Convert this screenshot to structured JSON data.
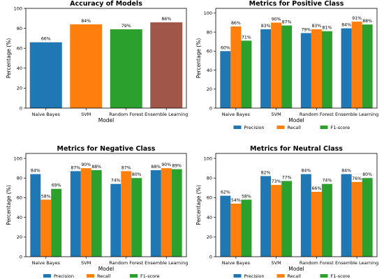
{
  "charts": [
    {
      "type": "bar",
      "title": "Accuracy of Models",
      "xlabel": "Model",
      "ylabel": "Percentage (%)",
      "ylim": [
        0,
        100
      ],
      "yticks": [
        0,
        20,
        40,
        60,
        80,
        100
      ],
      "categories": [
        "Naive Bayes",
        "SVM",
        "Random Forest",
        "Ensemble Learning"
      ],
      "series": [
        {
          "values": [
            66,
            84,
            79,
            86
          ],
          "labels": [
            "66%",
            "84%",
            "79%",
            "86%"
          ],
          "colors": [
            "#1f77b4",
            "#ff7f0e",
            "#2ca02c",
            "#a0574a"
          ]
        }
      ],
      "legend": false
    },
    {
      "type": "bar",
      "title": "Metrics for Positive Class",
      "xlabel": "Model",
      "ylabel": "Percentage (%)",
      "ylim": [
        0,
        105
      ],
      "yticks": [
        0,
        20,
        40,
        60,
        80,
        100
      ],
      "categories": [
        "Naive Bayes",
        "SVM",
        "Random Forest",
        "Ensemble Learning"
      ],
      "series": [
        {
          "name": "Precision",
          "color": "#1f77b4",
          "values": [
            60,
            83,
            79,
            84
          ],
          "labels": [
            "60%",
            "83%",
            "79%",
            "84%"
          ]
        },
        {
          "name": "Recall",
          "color": "#ff7f0e",
          "values": [
            86,
            90,
            83,
            91
          ],
          "labels": [
            "86%",
            "90%",
            "83%",
            "91%"
          ]
        },
        {
          "name": "F1-score",
          "color": "#2ca02c",
          "values": [
            71,
            87,
            81,
            88
          ],
          "labels": [
            "71%",
            "87%",
            "81%",
            "88%"
          ]
        }
      ],
      "legend": true,
      "legend_position": "bottom-center"
    },
    {
      "type": "bar",
      "title": "Metrics for Negative Class",
      "xlabel": "Model",
      "ylabel": "Percentage (%)",
      "ylim": [
        0,
        105
      ],
      "yticks": [
        0,
        20,
        40,
        60,
        80,
        100
      ],
      "categories": [
        "Naive Bayes",
        "SVM",
        "Random Forest",
        "Ensemble Learning"
      ],
      "series": [
        {
          "name": "Precision",
          "color": "#1f77b4",
          "values": [
            84,
            87,
            74,
            88
          ],
          "labels": [
            "84%",
            "87%",
            "74%",
            "88%"
          ]
        },
        {
          "name": "Recall",
          "color": "#ff7f0e",
          "values": [
            58,
            90,
            87,
            90
          ],
          "labels": [
            "58%",
            "90%",
            "87%",
            "90%"
          ]
        },
        {
          "name": "F1-score",
          "color": "#2ca02c",
          "values": [
            69,
            88,
            80,
            89
          ],
          "labels": [
            "69%",
            "88%",
            "80%",
            "89%"
          ]
        }
      ],
      "legend": true,
      "legend_position": "bottom-center"
    },
    {
      "type": "bar",
      "title": "Metrics for Neutral Class",
      "xlabel": "Model",
      "ylabel": "Percentage (%)",
      "ylim": [
        0,
        105
      ],
      "yticks": [
        0,
        20,
        40,
        60,
        80,
        100
      ],
      "categories": [
        "Naive Bayes",
        "SVM",
        "Random Forest",
        "Ensemble Learning"
      ],
      "series": [
        {
          "name": "Precision",
          "color": "#1f77b4",
          "values": [
            62,
            82,
            84,
            84
          ],
          "labels": [
            "62%",
            "82%",
            "84%",
            "84%"
          ]
        },
        {
          "name": "Recall",
          "color": "#ff7f0e",
          "values": [
            54,
            73,
            66,
            76
          ],
          "labels": [
            "54%",
            "73%",
            "66%",
            "76%"
          ]
        },
        {
          "name": "F1-score",
          "color": "#2ca02c",
          "values": [
            58,
            77,
            74,
            80
          ],
          "labels": [
            "58%",
            "77%",
            "74%",
            "80%"
          ]
        }
      ],
      "legend": true,
      "legend_position": "bottom-center"
    }
  ]
}
